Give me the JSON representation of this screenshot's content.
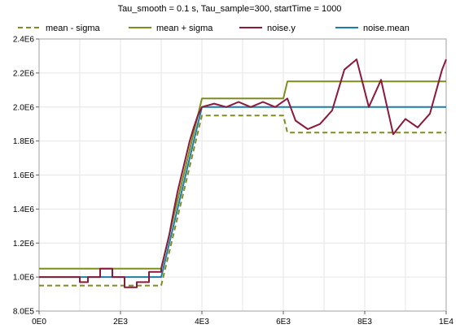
{
  "chart_data": {
    "type": "line",
    "title": "Tau_smooth = 0.1 s, Tau_sample=300, startTime = 1000",
    "xlabel": "",
    "ylabel": "",
    "xlim": [
      0,
      10000
    ],
    "ylim": [
      800000,
      2400000
    ],
    "x_ticks": [
      0,
      2000,
      4000,
      6000,
      8000,
      10000
    ],
    "x_tick_labels": [
      "0E0",
      "2E3",
      "4E3",
      "6E3",
      "8E3",
      "1E4"
    ],
    "y_ticks": [
      800000,
      1000000,
      1200000,
      1400000,
      1600000,
      1800000,
      2000000,
      2200000,
      2400000
    ],
    "y_tick_labels": [
      "8.0E5",
      "1.0E6",
      "1.2E6",
      "1.4E6",
      "1.6E6",
      "1.8E6",
      "2.0E6",
      "2.2E6",
      "2.4E6"
    ],
    "grid": true,
    "legend_position": "top",
    "series": [
      {
        "name": "mean - sigma",
        "color": "#7f8c1f",
        "dash": "dashed",
        "x": [
          0,
          3000,
          4000,
          6000,
          6100,
          10000
        ],
        "y": [
          950000,
          950000,
          1950000,
          1950000,
          1850000,
          1850000
        ]
      },
      {
        "name": "mean + sigma",
        "color": "#7f8c1f",
        "dash": "solid",
        "x": [
          0,
          3000,
          4000,
          6000,
          6100,
          10000
        ],
        "y": [
          1050000,
          1050000,
          2050000,
          2050000,
          2150000,
          2150000
        ]
      },
      {
        "name": "noise.y",
        "color": "#8b1a3a",
        "dash": "solid",
        "x": [
          0,
          1000,
          1000,
          1200,
          1200,
          1500,
          1500,
          1800,
          1800,
          2100,
          2100,
          2400,
          2400,
          2700,
          2700,
          3000,
          3000,
          3100,
          3200,
          3300,
          3400,
          3500,
          3600,
          3700,
          3800,
          3900,
          4000,
          4000,
          4300,
          4300,
          4600,
          4600,
          4900,
          4900,
          5200,
          5200,
          5500,
          5500,
          5800,
          5800,
          6100,
          6100,
          6300,
          6300,
          6600,
          6600,
          6900,
          6900,
          7200,
          7200,
          7500,
          7500,
          7800,
          7800,
          8100,
          8100,
          8400,
          8400,
          8700,
          8700,
          9000,
          9000,
          9300,
          9300,
          9600,
          9600,
          9900,
          9900,
          10000
        ],
        "y": [
          1000000,
          1000000,
          970000,
          970000,
          1000000,
          1000000,
          1050000,
          1050000,
          1000000,
          1000000,
          940000,
          940000,
          970000,
          970000,
          1030000,
          1030000,
          1050000,
          1150000,
          1250000,
          1380000,
          1500000,
          1600000,
          1700000,
          1800000,
          1880000,
          1950000,
          2000000,
          2000000,
          2020000,
          2020000,
          2000000,
          2000000,
          2030000,
          2030000,
          2000000,
          2000000,
          2030000,
          2030000,
          2000000,
          2000000,
          2050000,
          2050000,
          1920000,
          1920000,
          1870000,
          1870000,
          1900000,
          1900000,
          1980000,
          1980000,
          2220000,
          2220000,
          2280000,
          2280000,
          2000000,
          2000000,
          2160000,
          2160000,
          1840000,
          1840000,
          1930000,
          1930000,
          1880000,
          1880000,
          1960000,
          1960000,
          2220000,
          2220000,
          2280000
        ]
      },
      {
        "name": "noise.mean",
        "color": "#1a7fa8",
        "dash": "solid",
        "x": [
          0,
          3000,
          4000,
          6000,
          6100,
          10000
        ],
        "y": [
          1000000,
          1000000,
          2000000,
          2000000,
          2000000,
          2000000
        ]
      }
    ]
  }
}
